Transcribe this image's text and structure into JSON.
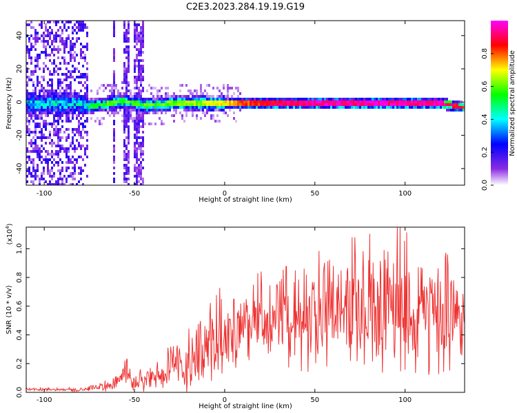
{
  "title": "C2E3.2023.284.19.19.G19",
  "chart_data": [
    {
      "type": "heatmap",
      "xlabel": "Height of straight line (km)",
      "ylabel": "Frequency (Hz)",
      "xlim": [
        -110,
        133
      ],
      "ylim": [
        -50,
        49
      ],
      "xticks": [
        -100,
        -50,
        0,
        50,
        100
      ],
      "yticks": [
        -40,
        -20,
        0,
        20,
        40
      ],
      "colorbar": {
        "label": "Normalized spectral amplitude",
        "range": [
          0,
          1
        ],
        "ticks": [
          "0.0",
          "0.2",
          "0.4",
          "0.6",
          "0.8"
        ],
        "colors": [
          "#ffffff",
          "#8a2be2",
          "#0000ff",
          "#00ffff",
          "#00ff00",
          "#ffff00",
          "#ff0000",
          "#ff00ff"
        ]
      },
      "series": [
        {
          "x": [
            -110,
            -100,
            -90,
            -80,
            -76,
            -70,
            -60,
            -55,
            -50,
            -45,
            -40,
            -30,
            -20,
            -10,
            0,
            10,
            20,
            30,
            40,
            50,
            60,
            70,
            80,
            90,
            100,
            110,
            120,
            130
          ],
          "center_hz": [
            0,
            0,
            0,
            0,
            -2,
            -1,
            1,
            1,
            0,
            -1,
            -1,
            0,
            0,
            0,
            0,
            0,
            0,
            0,
            0,
            0,
            0,
            0,
            0,
            0,
            0,
            0,
            0,
            -2
          ],
          "peak_amplitude": [
            0.4,
            0.4,
            0.4,
            0.4,
            0.5,
            0.55,
            0.6,
            0.6,
            0.55,
            0.6,
            0.6,
            0.6,
            0.62,
            0.65,
            0.7,
            0.8,
            0.85,
            0.9,
            0.92,
            0.95,
            0.95,
            0.93,
            0.95,
            0.95,
            0.93,
            0.95,
            0.95,
            0.85
          ]
        }
      ]
    },
    {
      "type": "line",
      "xlabel": "Height of straight line (km)",
      "ylabel": "SNR (10 * v/v)",
      "y_multiplier": "(x10",
      "y_multiplier_exp": "4",
      "y_multiplier_close": ")",
      "xlim": [
        -110,
        133
      ],
      "ylim": [
        0,
        1.15
      ],
      "xticks": [
        -100,
        -50,
        0,
        50,
        100
      ],
      "yticks": [
        "0.0",
        "0.2",
        "0.4",
        "0.6",
        "0.8",
        "1.0"
      ],
      "series": [
        {
          "color": "#ee3333",
          "x": [
            -110,
            -100,
            -90,
            -80,
            -75,
            -70,
            -65,
            -60,
            -57,
            -55,
            -50,
            -45,
            -40,
            -35,
            -30,
            -25,
            -20,
            -15,
            -10,
            -5,
            0,
            5,
            10,
            15,
            20,
            25,
            30,
            35,
            40,
            45,
            50,
            55,
            60,
            65,
            70,
            75,
            80,
            85,
            90,
            95,
            100,
            105,
            110,
            115,
            120,
            125,
            130,
            133
          ],
          "mean": [
            0.02,
            0.02,
            0.02,
            0.02,
            0.03,
            0.04,
            0.05,
            0.07,
            0.1,
            0.16,
            0.06,
            0.08,
            0.1,
            0.12,
            0.15,
            0.18,
            0.2,
            0.24,
            0.3,
            0.36,
            0.4,
            0.42,
            0.45,
            0.47,
            0.48,
            0.5,
            0.5,
            0.52,
            0.53,
            0.55,
            0.56,
            0.57,
            0.58,
            0.6,
            0.6,
            0.6,
            0.6,
            0.6,
            0.6,
            0.6,
            0.58,
            0.58,
            0.57,
            0.55,
            0.55,
            0.52,
            0.5,
            0.45
          ],
          "spread": [
            0.01,
            0.01,
            0.01,
            0.02,
            0.02,
            0.03,
            0.04,
            0.05,
            0.06,
            0.14,
            0.06,
            0.08,
            0.1,
            0.12,
            0.15,
            0.17,
            0.2,
            0.25,
            0.3,
            0.3,
            0.28,
            0.26,
            0.28,
            0.28,
            0.3,
            0.3,
            0.3,
            0.3,
            0.32,
            0.35,
            0.35,
            0.35,
            0.35,
            0.38,
            0.4,
            0.4,
            0.42,
            0.42,
            0.45,
            0.5,
            0.45,
            0.42,
            0.4,
            0.4,
            0.38,
            0.35,
            0.3,
            0.25
          ]
        }
      ]
    }
  ]
}
